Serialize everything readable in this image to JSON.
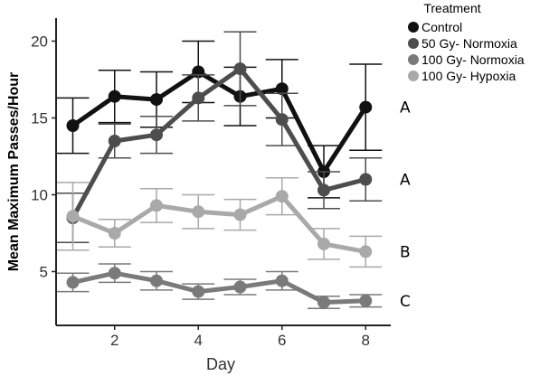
{
  "chart_data": {
    "type": "line",
    "xlabel": "Day",
    "ylabel": "Mean Maximum Passes/Hour",
    "x": [
      1,
      2,
      3,
      4,
      5,
      6,
      7,
      8
    ],
    "xticks": [
      "2",
      "4",
      "6",
      "8"
    ],
    "xtick_values": [
      2,
      4,
      6,
      8
    ],
    "yticks": [
      "5",
      "10",
      "15",
      "20"
    ],
    "ytick_values": [
      5,
      10,
      15,
      20
    ],
    "xlim": [
      0.6,
      8.6
    ],
    "ylim": [
      1.5,
      21.5
    ],
    "grid": false,
    "legend": {
      "title": "Treatment",
      "position": "top-right"
    },
    "series": [
      {
        "name": "Control",
        "color": "#111111",
        "y": [
          14.5,
          16.4,
          16.2,
          18.0,
          16.4,
          16.9,
          11.5,
          15.7
        ],
        "err": [
          1.8,
          1.7,
          1.8,
          2.0,
          1.9,
          1.9,
          1.7,
          2.8
        ],
        "group": "A"
      },
      {
        "name": "50 Gy- Normoxia",
        "color": "#4d4d4d",
        "y": [
          8.5,
          13.5,
          13.9,
          16.3,
          18.2,
          14.9,
          10.3,
          11.0
        ],
        "err": [
          1.6,
          1.1,
          1.2,
          1.5,
          2.4,
          1.7,
          1.2,
          1.4
        ],
        "group": "A"
      },
      {
        "name": "100 Gy- Normoxia",
        "color": "#7a7a7a",
        "y": [
          4.3,
          4.9,
          4.4,
          3.7,
          4.0,
          4.4,
          3.0,
          3.1
        ],
        "err": [
          0.6,
          0.6,
          0.6,
          0.5,
          0.5,
          0.6,
          0.4,
          0.4
        ],
        "group": "C"
      },
      {
        "name": "100 Gy- Hypoxia",
        "color": "#a9a9a9",
        "y": [
          8.6,
          7.5,
          9.3,
          8.9,
          8.7,
          9.9,
          6.8,
          6.3
        ],
        "err": [
          2.2,
          0.9,
          1.1,
          1.1,
          1.0,
          1.2,
          1.0,
          1.0
        ],
        "group": "B"
      }
    ]
  }
}
